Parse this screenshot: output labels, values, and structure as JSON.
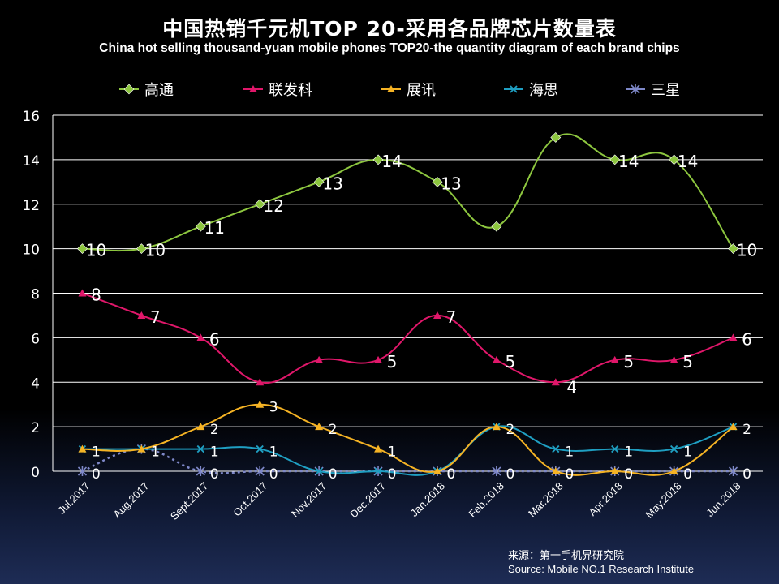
{
  "chart_data": {
    "type": "line",
    "title": "中国热销千元机TOP 20-采用各品牌芯片数量表",
    "subtitle": "China hot selling thousand-yuan mobile phones TOP20-the quantity diagram of each brand chips",
    "categories": [
      "Jul.2017",
      "Aug.2017",
      "Sept.2017",
      "Oct.2017",
      "Nov.2017",
      "Dec.2017",
      "Jan.2018",
      "Feb.2018",
      "Mar.2018",
      "Apr.2018",
      "May.2018",
      "Jun.2018"
    ],
    "ylim": [
      0,
      16
    ],
    "yticks": [
      "0",
      "2",
      "4",
      "6",
      "8",
      "10",
      "12",
      "14",
      "16"
    ],
    "grid": true,
    "legend_position": "top",
    "series": [
      {
        "name": "高通",
        "color": "#8dc63f",
        "marker": "diamond",
        "values": [
          10,
          10,
          11,
          12,
          13,
          14,
          13,
          11,
          15,
          14,
          14,
          10
        ],
        "labels": [
          "10",
          "10",
          "11",
          "12",
          "13",
          "14",
          "13",
          "",
          "",
          "14",
          "14",
          "10"
        ]
      },
      {
        "name": "联发科",
        "color": "#e0176a",
        "marker": "triangle",
        "values": [
          8,
          7,
          6,
          4,
          5,
          5,
          7,
          5,
          4,
          5,
          5,
          6
        ],
        "labels": [
          "8",
          "7",
          "6",
          "",
          "",
          "5",
          "7",
          "5",
          "4",
          "5",
          "5",
          "6"
        ]
      },
      {
        "name": "展讯",
        "color": "#f5b324",
        "marker": "triangle",
        "values": [
          1,
          1,
          2,
          3,
          2,
          1,
          0,
          2,
          0,
          0,
          0,
          2
        ],
        "labels": [
          "1",
          "1",
          "2",
          "3",
          "2",
          "1",
          "0",
          "2",
          "0",
          "0",
          "0",
          "2"
        ]
      },
      {
        "name": "海思",
        "color": "#1f9fc2",
        "marker": "x",
        "values": [
          1,
          1,
          1,
          1,
          0,
          0,
          0,
          2,
          1,
          1,
          1,
          2
        ],
        "labels": [
          "",
          "",
          "1",
          "1",
          "",
          "",
          "",
          "",
          "1",
          "1",
          "1",
          ""
        ]
      },
      {
        "name": "三星",
        "color": "#7e88c8",
        "marker": "star",
        "values": [
          0,
          1,
          0,
          0,
          0,
          0,
          0,
          0,
          0,
          0,
          0,
          0
        ],
        "labels": [
          "0",
          "",
          "0",
          "0",
          "0",
          "0",
          "0",
          "0",
          "0",
          "0",
          "0",
          "0"
        ]
      }
    ]
  },
  "source": {
    "line1": "来源：第一手机界研究院",
    "line2": "Source: Mobile NO.1 Research Institute"
  }
}
